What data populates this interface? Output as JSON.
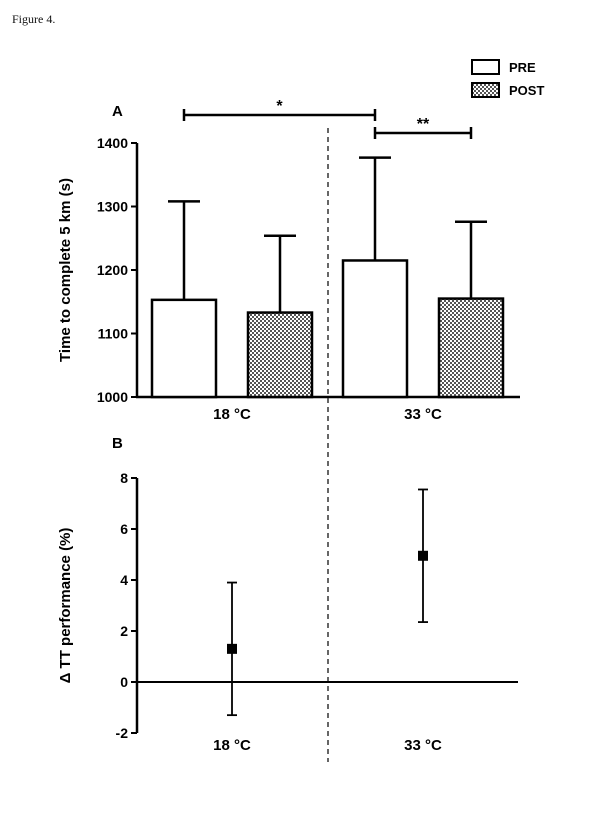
{
  "figure_label": "Figure 4.",
  "chart_data": [
    {
      "type": "bar",
      "panel": "A",
      "ylabel": "Time to complete 5 km (s)",
      "ylim": [
        1000,
        1400
      ],
      "yticks": [
        "1000",
        "1100",
        "1200",
        "1300",
        "1400"
      ],
      "groups": [
        "18 °C",
        "33 °C"
      ],
      "series": [
        {
          "name": "PRE",
          "pattern": "white",
          "values": [
            1153,
            1215
          ],
          "error_upper": [
            1308,
            1377
          ]
        },
        {
          "name": "POST",
          "pattern": "checkered",
          "values": [
            1133,
            1155
          ],
          "error_upper": [
            1254,
            1276
          ]
        }
      ],
      "significance": [
        {
          "label": "*"
        },
        {
          "label": "**"
        }
      ],
      "legend_position": "top-right"
    },
    {
      "type": "scatter",
      "panel": "B",
      "ylabel": "Δ TT performance (%)",
      "ylim": [
        -2,
        8
      ],
      "yticks": [
        "-2",
        "0",
        "2",
        "4",
        "6",
        "8"
      ],
      "categories": [
        "18 °C",
        "33 °C"
      ],
      "values": [
        1.3,
        4.95
      ],
      "error_low": [
        -1.3,
        2.35
      ],
      "error_high": [
        3.9,
        7.55
      ]
    }
  ]
}
